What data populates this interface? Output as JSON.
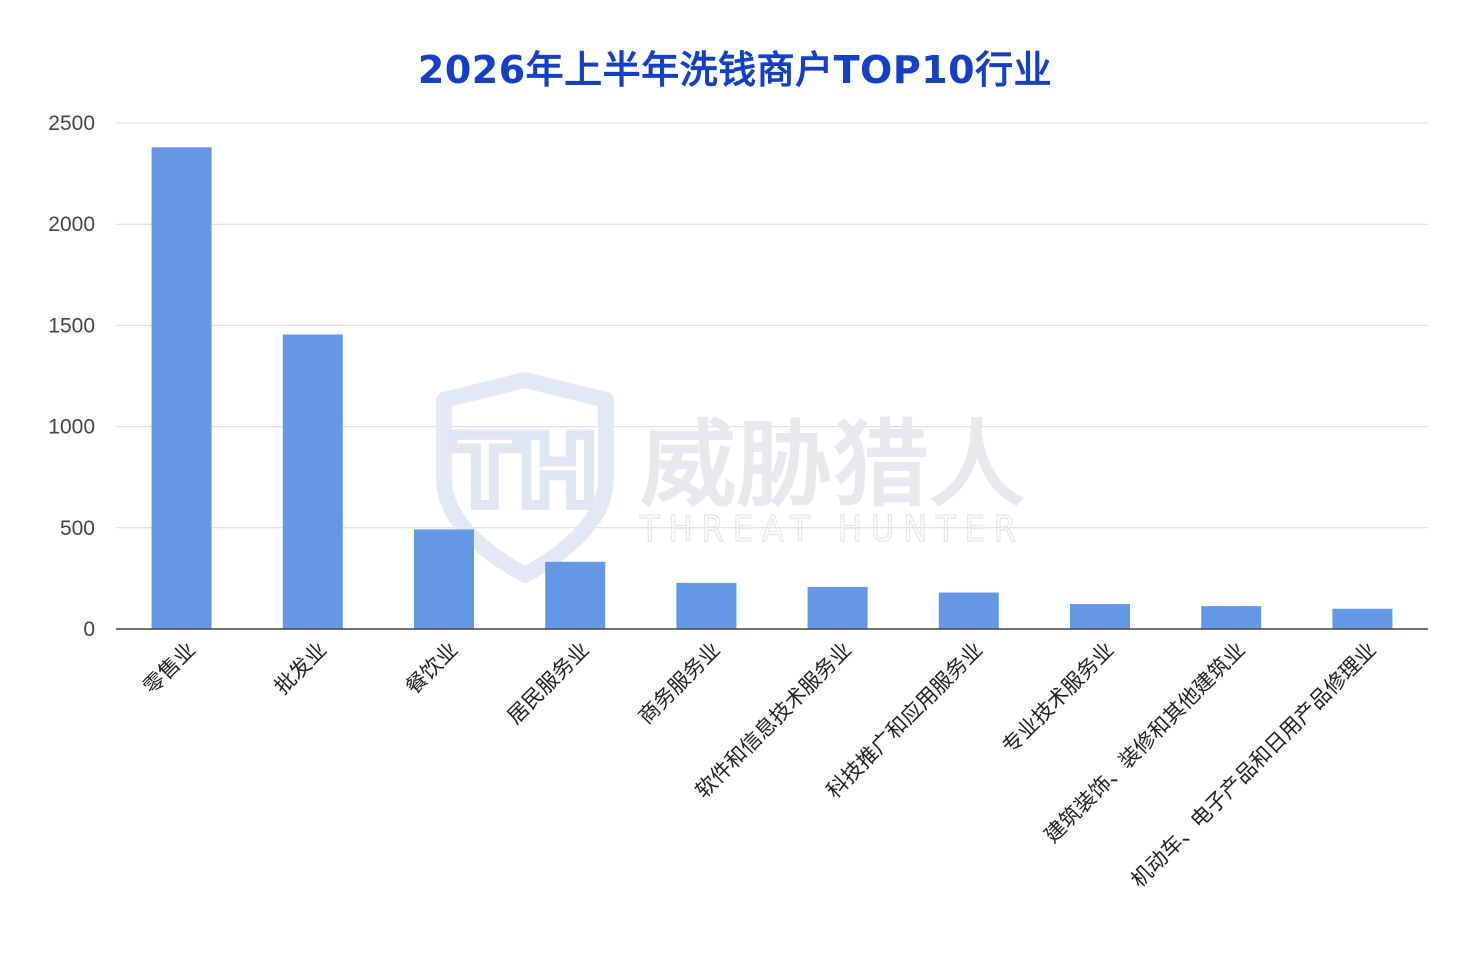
{
  "chart_data": {
    "type": "bar",
    "title": "2026年上半年洗钱商户TOP10行业",
    "categories": [
      "零售业",
      "批发业",
      "餐饮业",
      "居民服务业",
      "商务服务业",
      "软件和信息技术服务业",
      "科技推广和应用服务业",
      "专业技术服务业",
      "建筑装饰、装修和其他建筑业",
      "机动车、电子产品和日用产品修理业"
    ],
    "values": [
      2380,
      1455,
      492,
      332,
      228,
      208,
      180,
      123,
      113,
      100
    ],
    "ylim": [
      0,
      2500
    ],
    "yticks": [
      0,
      500,
      1000,
      1500,
      2000,
      2500
    ],
    "grid": true,
    "bar_color": "#6497e6",
    "title_color": "#1440c6",
    "watermark": {
      "text_cn": "威胁猎人",
      "text_en": "THREAT HUNTER",
      "logo_letters": "TH"
    }
  }
}
